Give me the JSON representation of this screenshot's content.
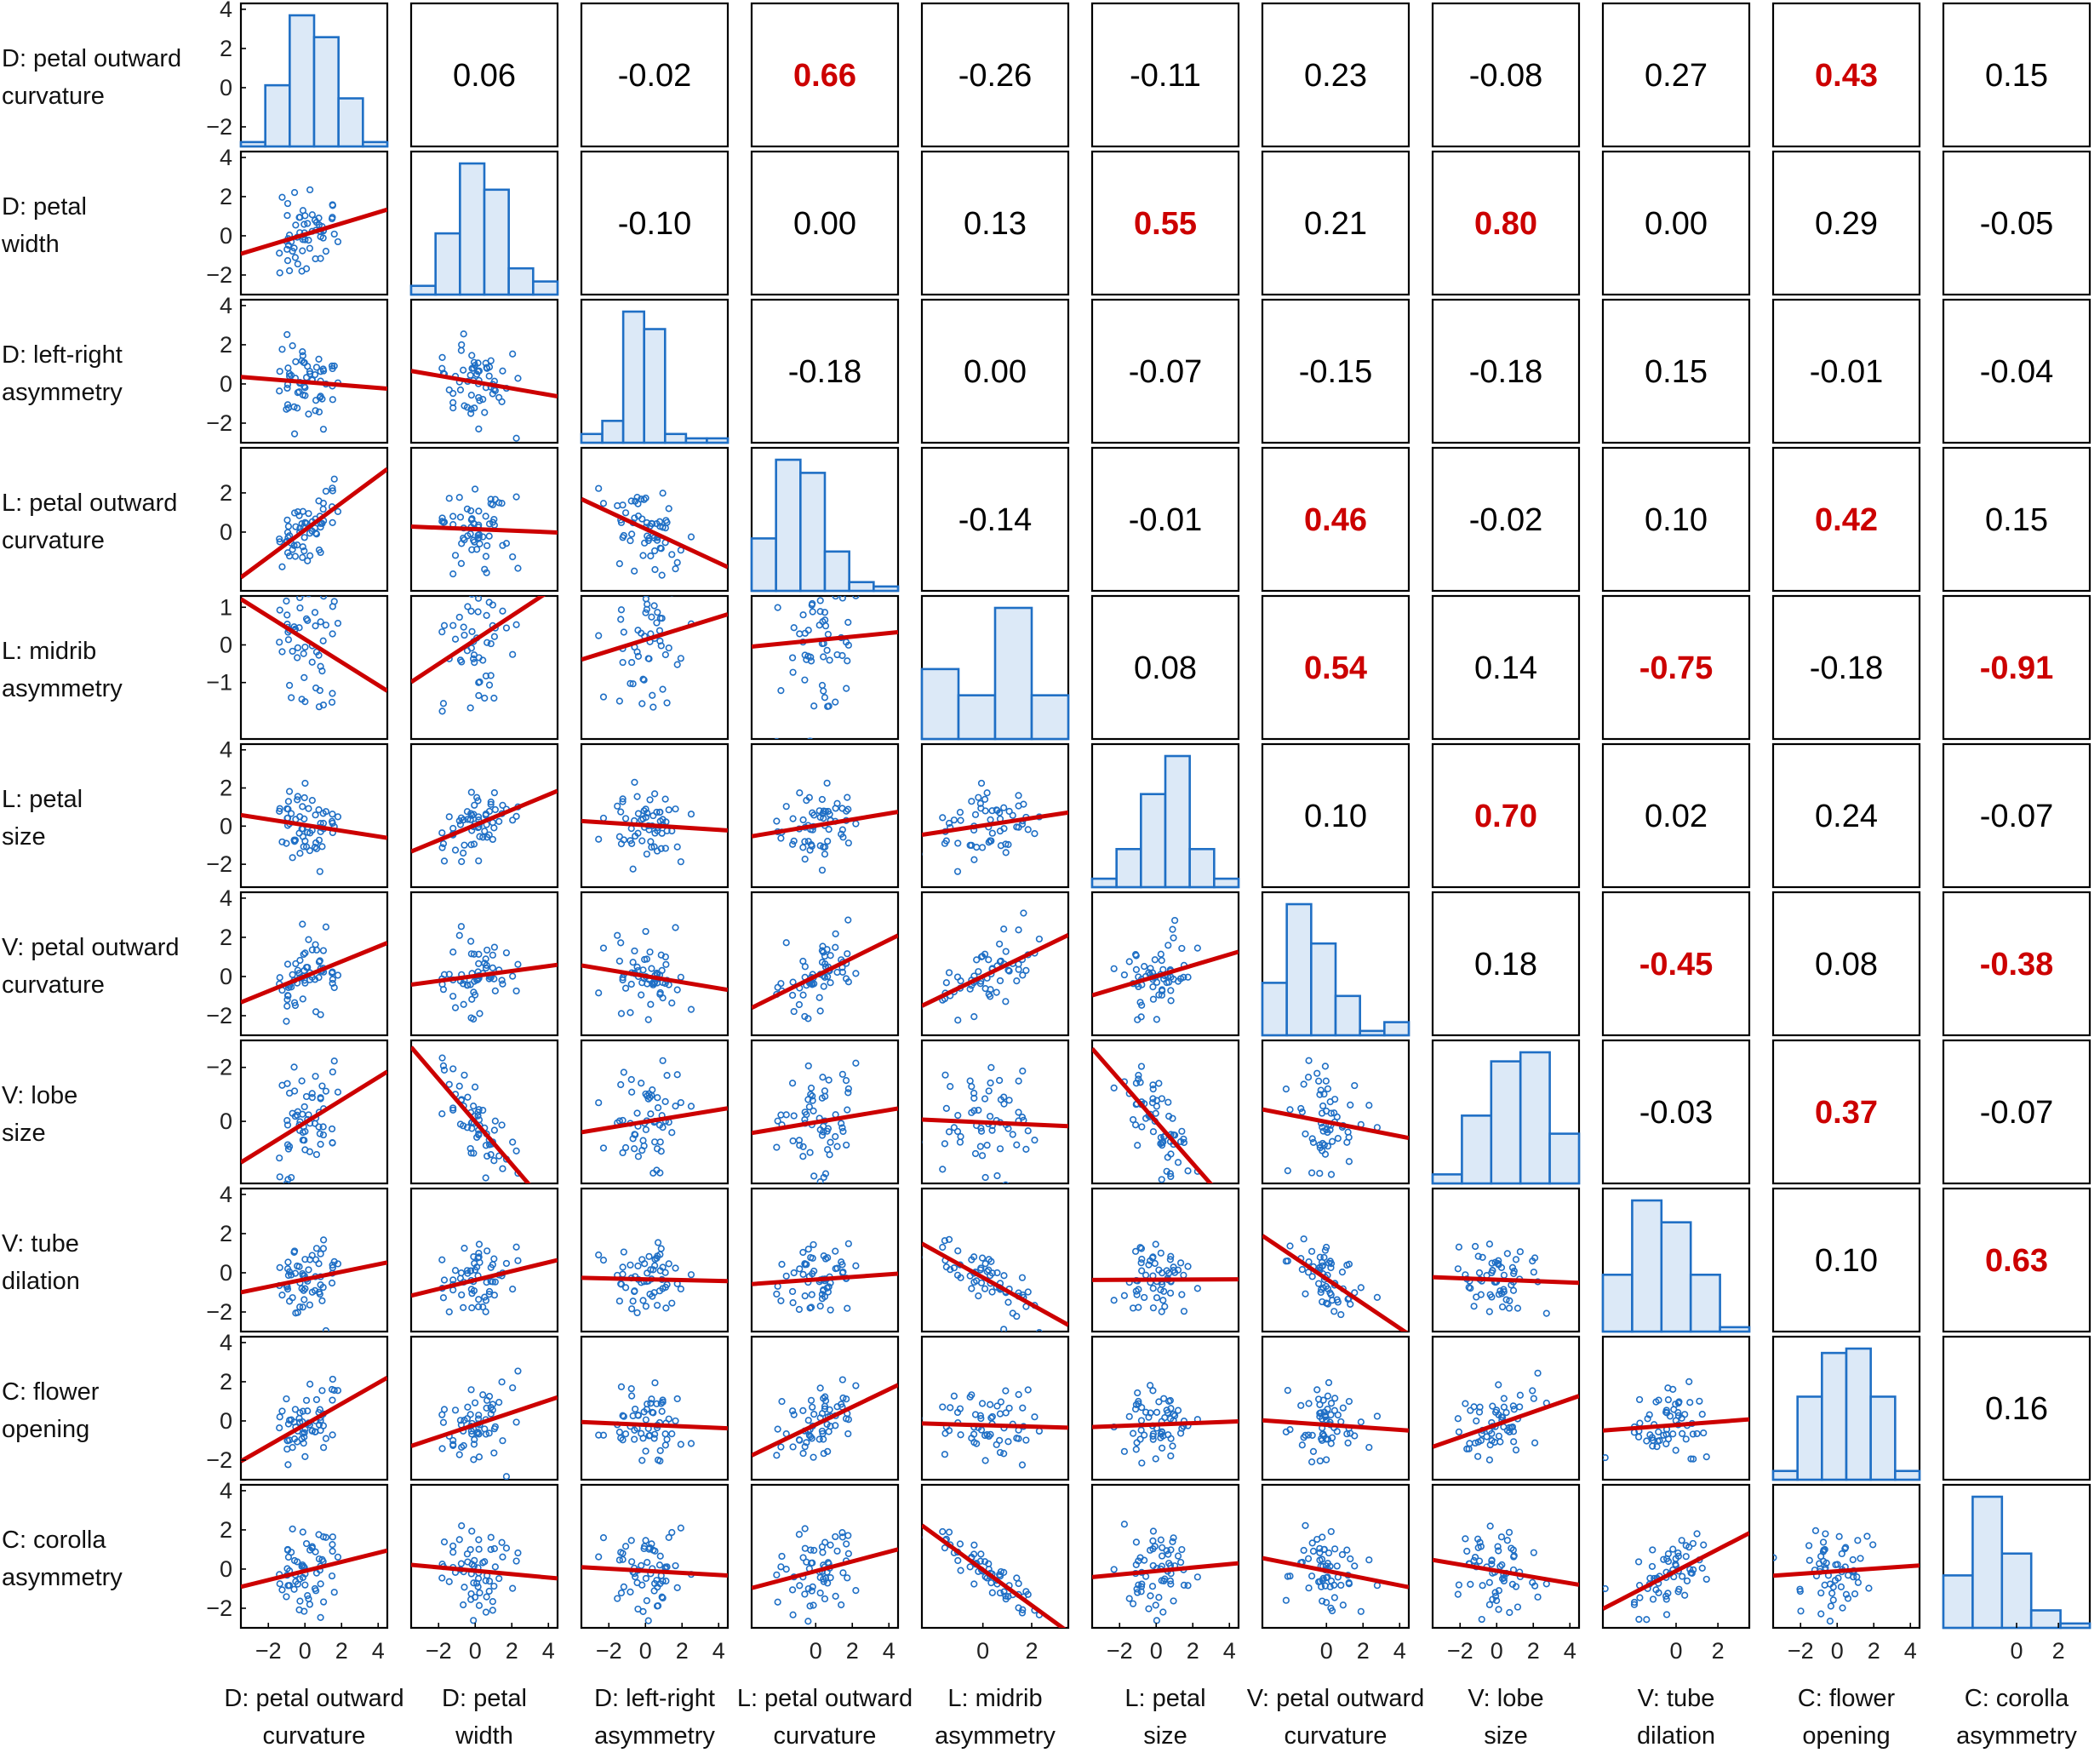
{
  "chart_data": {
    "type": "scatter",
    "title": "",
    "subtype": "correlation scatterplot matrix",
    "variables": [
      "D: petal outward curvature",
      "D: petal width",
      "D: left-right asymmetry",
      "L: petal outward curvature",
      "L: midrib asymmetry",
      "L: petal size",
      "V: petal outward curvature",
      "V: lobe size",
      "V: tube dilation",
      "C: flower opening",
      "C: corolla asymmetry"
    ],
    "row_label_lines": [
      [
        "D: petal outward",
        "curvature"
      ],
      [
        "D: petal",
        "width"
      ],
      [
        "D: left-right",
        "asymmetry"
      ],
      [
        "L: petal outward",
        "curvature"
      ],
      [
        "L: midrib",
        "asymmetry"
      ],
      [
        "L: petal",
        "size"
      ],
      [
        "V: petal outward",
        "curvature"
      ],
      [
        "V: lobe",
        "size"
      ],
      [
        "V: tube",
        "dilation"
      ],
      [
        "C: flower",
        "opening"
      ],
      [
        "C: corolla",
        "asymmetry"
      ]
    ],
    "col_label_lines": [
      [
        "D: petal outward",
        "curvature"
      ],
      [
        "D: petal",
        "width"
      ],
      [
        "D: left-right",
        "asymmetry"
      ],
      [
        "L: petal outward",
        "curvature"
      ],
      [
        "L: midrib",
        "asymmetry"
      ],
      [
        "L: petal",
        "size"
      ],
      [
        "V: petal outward",
        "curvature"
      ],
      [
        "V: lobe",
        "size"
      ],
      [
        "V: tube",
        "dilation"
      ],
      [
        "C: flower",
        "opening"
      ],
      [
        "C: corolla",
        "asymmetry"
      ]
    ],
    "y_ranges": [
      [
        -3,
        4.3
      ],
      [
        -3,
        4.3
      ],
      [
        -3,
        4.3
      ],
      [
        -3,
        4.3
      ],
      [
        -2.5,
        1.3
      ],
      [
        -3.2,
        4.3
      ],
      [
        -3,
        4.3
      ],
      [
        2.3,
        -3
      ],
      [
        -3,
        4.3
      ],
      [
        -3,
        4.3
      ],
      [
        -3,
        4.3
      ]
    ],
    "y_ticks": [
      [
        -2,
        0,
        2,
        4
      ],
      [
        -2,
        0,
        2,
        4
      ],
      [
        -2,
        0,
        2,
        4
      ],
      [
        0,
        2
      ],
      [
        -1,
        0,
        1
      ],
      [
        -2,
        0,
        2,
        4
      ],
      [
        -2,
        0,
        2,
        4
      ],
      [
        -2,
        0
      ],
      [
        -2,
        0,
        2,
        4
      ],
      [
        -2,
        0,
        2,
        4
      ],
      [
        -2,
        0,
        2,
        4
      ]
    ],
    "x_ranges": [
      [
        -3.5,
        4.5
      ],
      [
        -3.5,
        4.5
      ],
      [
        -3.5,
        4.5
      ],
      [
        -3.5,
        4.5
      ],
      [
        -2.5,
        3.5
      ],
      [
        -3.5,
        4.5
      ],
      [
        -3.5,
        4.5
      ],
      [
        -3.5,
        4.5
      ],
      [
        -3.5,
        3.5
      ],
      [
        -3.5,
        4.5
      ],
      [
        -3.5,
        3.5
      ]
    ],
    "x_ticks": [
      [
        -2,
        0,
        2,
        4
      ],
      [
        -2,
        0,
        2,
        4
      ],
      [
        -2,
        0,
        2,
        4
      ],
      [
        0,
        2,
        4
      ],
      [
        0,
        2
      ],
      [
        -2,
        0,
        2,
        4
      ],
      [
        0,
        2,
        4
      ],
      [
        -2,
        0,
        2,
        4
      ],
      [
        0,
        2
      ],
      [
        -2,
        0,
        2,
        4
      ],
      [
        0,
        2
      ]
    ],
    "correlations": [
      [
        null,
        0.06,
        -0.02,
        0.66,
        -0.26,
        -0.11,
        0.23,
        -0.08,
        0.27,
        0.43,
        0.15
      ],
      [
        null,
        null,
        -0.1,
        0.0,
        0.13,
        0.55,
        0.21,
        0.8,
        0.0,
        0.29,
        -0.05
      ],
      [
        null,
        null,
        null,
        -0.18,
        0.0,
        -0.07,
        -0.15,
        -0.18,
        0.15,
        -0.01,
        -0.04
      ],
      [
        null,
        null,
        null,
        null,
        -0.14,
        -0.01,
        0.46,
        -0.02,
        0.1,
        0.42,
        0.15
      ],
      [
        null,
        null,
        null,
        null,
        null,
        0.08,
        0.54,
        0.14,
        -0.75,
        -0.18,
        -0.91
      ],
      [
        null,
        null,
        null,
        null,
        null,
        null,
        0.1,
        0.7,
        0.02,
        0.24,
        -0.07
      ],
      [
        null,
        null,
        null,
        null,
        null,
        null,
        null,
        0.18,
        -0.45,
        0.08,
        -0.38
      ],
      [
        null,
        null,
        null,
        null,
        null,
        null,
        null,
        null,
        -0.03,
        0.37,
        -0.07
      ],
      [
        null,
        null,
        null,
        null,
        null,
        null,
        null,
        null,
        null,
        0.1,
        0.63
      ],
      [
        null,
        null,
        null,
        null,
        null,
        null,
        null,
        null,
        null,
        null,
        0.16
      ],
      [
        null,
        null,
        null,
        null,
        null,
        null,
        null,
        null,
        null,
        null,
        null
      ]
    ],
    "correlation_labels": [
      [
        "",
        "0.06",
        "-0.02",
        "0.66",
        "-0.26",
        "-0.11",
        "0.23",
        "-0.08",
        "0.27",
        "0.43",
        "0.15"
      ],
      [
        "",
        "",
        "-0.10",
        "0.00",
        "0.13",
        "0.55",
        "0.21",
        "0.80",
        "0.00",
        "0.29",
        "-0.05"
      ],
      [
        "",
        "",
        "",
        "-0.18",
        "0.00",
        "-0.07",
        "-0.15",
        "-0.18",
        "0.15",
        "-0.01",
        "-0.04"
      ],
      [
        "",
        "",
        "",
        "",
        "-0.14",
        "-0.01",
        "0.46",
        "-0.02",
        "0.10",
        "0.42",
        "0.15"
      ],
      [
        "",
        "",
        "",
        "",
        "",
        "0.08",
        "0.54",
        "0.14",
        "-0.75",
        "-0.18",
        "-0.91"
      ],
      [
        "",
        "",
        "",
        "",
        "",
        "",
        "0.10",
        "0.70",
        "0.02",
        "0.24",
        "-0.07"
      ],
      [
        "",
        "",
        "",
        "",
        "",
        "",
        "",
        "0.18",
        "-0.45",
        "0.08",
        "-0.38"
      ],
      [
        "",
        "",
        "",
        "",
        "",
        "",
        "",
        "",
        "-0.03",
        "0.37",
        "-0.07"
      ],
      [
        "",
        "",
        "",
        "",
        "",
        "",
        "",
        "",
        "",
        "0.10",
        "0.63"
      ],
      [
        "",
        "",
        "",
        "",
        "",
        "",
        "",
        "",
        "",
        "",
        "0.16"
      ],
      [
        "",
        "",
        "",
        "",
        "",
        "",
        "",
        "",
        "",
        "",
        ""
      ]
    ],
    "significant": [
      [
        false,
        false,
        false,
        true,
        false,
        false,
        false,
        false,
        false,
        true,
        false
      ],
      [
        false,
        false,
        false,
        false,
        false,
        true,
        false,
        true,
        false,
        false,
        false
      ],
      [
        false,
        false,
        false,
        false,
        false,
        false,
        false,
        false,
        false,
        false,
        false
      ],
      [
        false,
        false,
        false,
        false,
        false,
        false,
        true,
        false,
        false,
        true,
        false
      ],
      [
        false,
        false,
        false,
        false,
        false,
        false,
        true,
        false,
        true,
        false,
        true
      ],
      [
        false,
        false,
        false,
        false,
        false,
        false,
        false,
        true,
        false,
        false,
        false
      ],
      [
        false,
        false,
        false,
        false,
        false,
        false,
        false,
        false,
        true,
        false,
        true
      ],
      [
        false,
        false,
        false,
        false,
        false,
        false,
        false,
        false,
        false,
        true,
        false
      ],
      [
        false,
        false,
        false,
        false,
        false,
        false,
        false,
        false,
        false,
        false,
        true
      ],
      [
        false,
        false,
        false,
        false,
        false,
        false,
        false,
        false,
        false,
        false,
        false
      ],
      [
        false,
        false,
        false,
        false,
        false,
        false,
        false,
        false,
        false,
        false,
        false
      ]
    ],
    "histogram_counts": [
      [
        1,
        14,
        30,
        25,
        11,
        1
      ],
      [
        2,
        14,
        30,
        24,
        6,
        3
      ],
      [
        2,
        5,
        30,
        26,
        2,
        1,
        1
      ],
      [
        12,
        30,
        27,
        9,
        2,
        1
      ],
      [
        16,
        10,
        30,
        10
      ],
      [
        2,
        9,
        22,
        31,
        9,
        2
      ],
      [
        12,
        30,
        21,
        9,
        1,
        3
      ],
      [
        2,
        15,
        27,
        29,
        11
      ],
      [
        13,
        30,
        25,
        13,
        1
      ],
      [
        2,
        19,
        29,
        30,
        19,
        2
      ],
      [
        12,
        30,
        17,
        4,
        1
      ]
    ],
    "scatter_points_per_panel": 60,
    "regression_line": "least-squares fit shown in red in each lower-triangle panel",
    "highlight_color": "#cc0000",
    "marker_color": "#1f6fc5",
    "histogram_fill": "#dce9f7",
    "xlabel": "",
    "ylabel": "",
    "legend": "none",
    "grid": false
  }
}
